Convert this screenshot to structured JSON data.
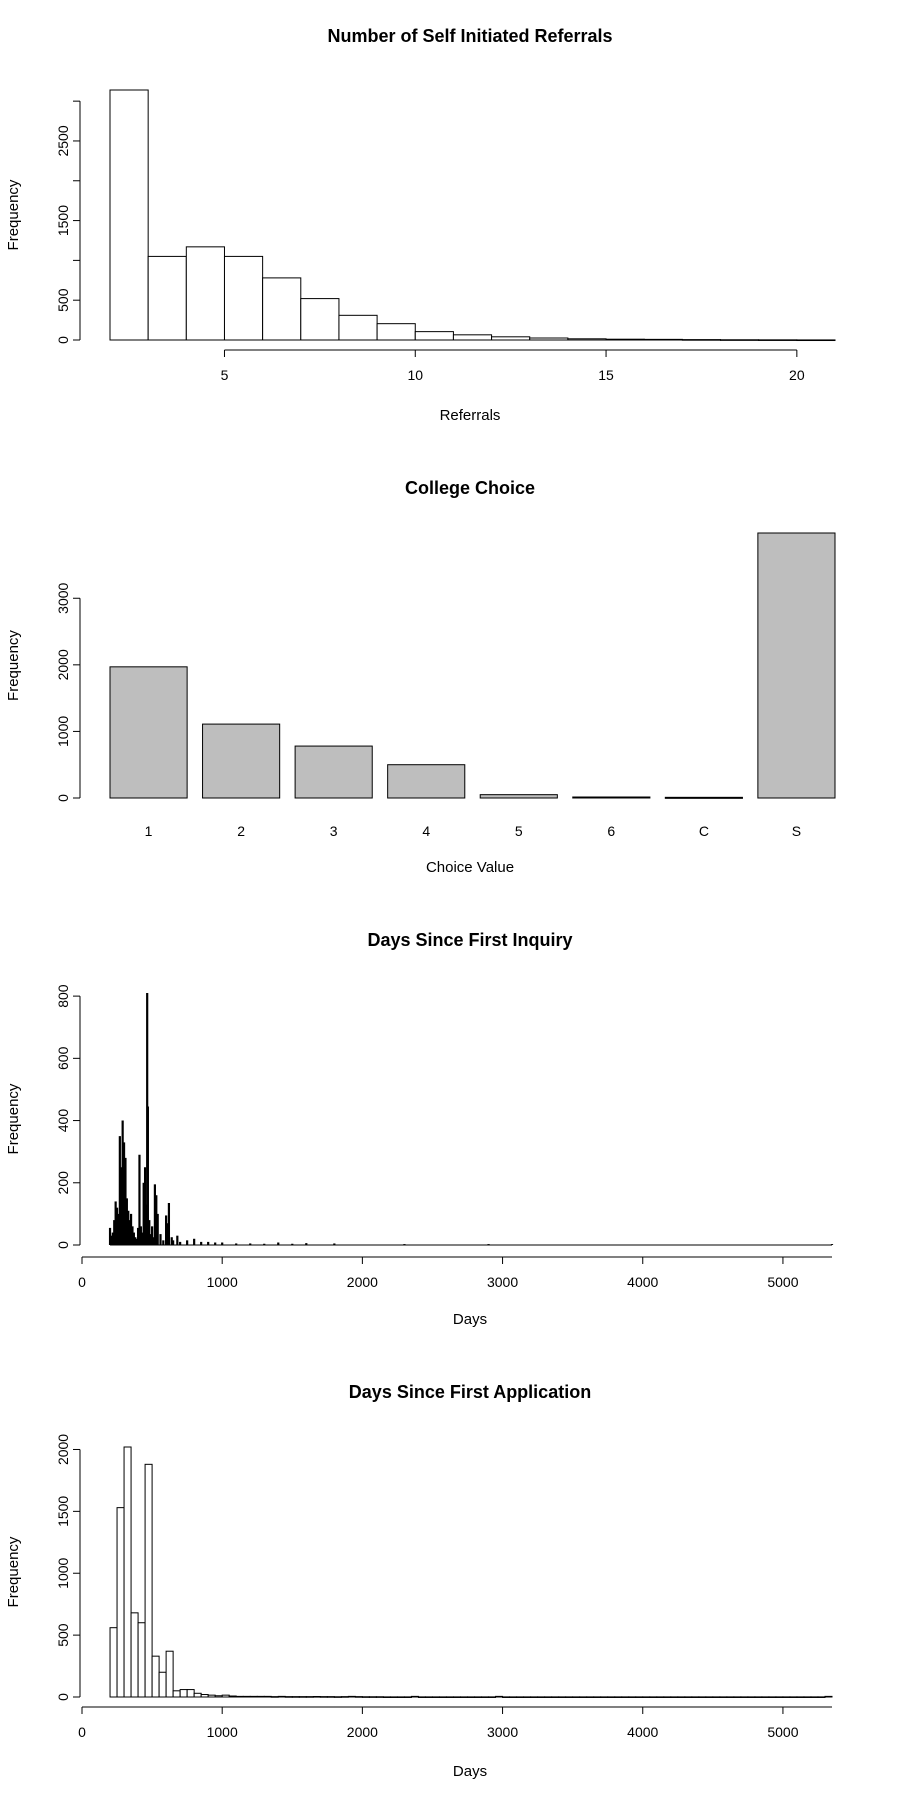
{
  "chart_data": [
    {
      "type": "bar",
      "title": "Number of Self Initiated Referrals",
      "xlabel": "Referrals",
      "ylabel": "Frequency",
      "histogram": true,
      "bin_edges": [
        2,
        3,
        4,
        5,
        6,
        7,
        8,
        9,
        10,
        11,
        12,
        13,
        14,
        15,
        16,
        17,
        18,
        19,
        20,
        21
      ],
      "values": [
        3140,
        1050,
        1170,
        1050,
        780,
        520,
        310,
        205,
        105,
        65,
        40,
        25,
        15,
        10,
        8,
        5,
        3,
        2,
        1
      ],
      "xlim": [
        2,
        21
      ],
      "ylim": [
        0,
        3140
      ],
      "xticks": [
        5,
        10,
        15,
        20
      ],
      "xtick_labels": [
        "5",
        "10",
        "15",
        "20"
      ],
      "yticks": [
        0,
        500,
        1000,
        1500,
        2000,
        2500,
        3000
      ],
      "ytick_labels": [
        "0",
        "500",
        "",
        "1500",
        "",
        "2500",
        ""
      ],
      "fill": "#ffffff"
    },
    {
      "type": "bar",
      "title": "College Choice",
      "xlabel": "Choice Value",
      "ylabel": "Frequency",
      "categories": [
        "1",
        "2",
        "3",
        "4",
        "5",
        "6",
        "C",
        "S"
      ],
      "values": [
        1970,
        1110,
        780,
        500,
        50,
        15,
        10,
        3980
      ],
      "ylim": [
        0,
        3980
      ],
      "yticks": [
        0,
        1000,
        2000,
        3000
      ],
      "ytick_labels": [
        "0",
        "1000",
        "2000",
        "3000"
      ],
      "fill": "#bebebe"
    },
    {
      "type": "bar",
      "title": "Days Since First Inquiry",
      "xlabel": "Days",
      "ylabel": "Frequency",
      "spikes": true,
      "x": [
        200,
        210,
        220,
        230,
        240,
        250,
        260,
        270,
        280,
        290,
        300,
        310,
        320,
        330,
        340,
        350,
        360,
        370,
        380,
        390,
        400,
        410,
        420,
        430,
        440,
        450,
        460,
        465,
        470,
        480,
        490,
        500,
        510,
        520,
        530,
        540,
        560,
        580,
        600,
        610,
        620,
        640,
        650,
        680,
        700,
        750,
        800,
        850,
        900,
        950,
        1000,
        1100,
        1200,
        1300,
        1400,
        1500,
        1600,
        1800,
        2300,
        2900,
        5350
      ],
      "values": [
        55,
        30,
        40,
        80,
        140,
        120,
        100,
        350,
        250,
        400,
        330,
        280,
        150,
        110,
        80,
        100,
        60,
        40,
        25,
        20,
        55,
        290,
        60,
        40,
        200,
        250,
        130,
        810,
        445,
        80,
        35,
        60,
        25,
        195,
        160,
        100,
        35,
        15,
        95,
        70,
        135,
        25,
        15,
        30,
        10,
        15,
        20,
        10,
        10,
        8,
        8,
        5,
        5,
        4,
        8,
        4,
        6,
        5,
        3,
        3,
        3
      ],
      "xlim": [
        0,
        5350
      ],
      "ylim": [
        0,
        810
      ],
      "xticks": [
        0,
        1000,
        2000,
        3000,
        4000,
        5000
      ],
      "xtick_labels": [
        "0",
        "1000",
        "2000",
        "3000",
        "4000",
        "5000"
      ],
      "yticks": [
        0,
        200,
        400,
        600,
        800
      ],
      "ytick_labels": [
        "0",
        "200",
        "400",
        "600",
        "800"
      ]
    },
    {
      "type": "bar",
      "title": "Days Since First Application",
      "xlabel": "Days",
      "ylabel": "Frequency",
      "histogram": true,
      "bin_edges": [
        200,
        250,
        300,
        350,
        400,
        450,
        500,
        550,
        600,
        650,
        700,
        750,
        800,
        850,
        900,
        950,
        1000,
        1050,
        1100,
        1150,
        1200,
        1250,
        1300,
        1350,
        1400,
        1450,
        1500,
        1550,
        1600,
        1650,
        1700,
        1750,
        1800,
        1850,
        1900,
        1950,
        2000,
        2050,
        2100,
        2150,
        2200,
        2250,
        2300,
        2350,
        2400,
        2450,
        2500,
        2550,
        2600,
        2650,
        2700,
        2750,
        2800,
        2850,
        2900,
        2950,
        3000,
        3050,
        3100,
        3150,
        3200,
        3250,
        3300,
        3350,
        3400,
        3450,
        3500,
        3550,
        3600,
        3650,
        3700,
        3750,
        3800,
        3850,
        3900,
        3950,
        4000,
        4050,
        4100,
        4150,
        4200,
        4250,
        4300,
        4350,
        4400,
        4450,
        4500,
        4550,
        4600,
        4650,
        4700,
        4750,
        4800,
        4850,
        4900,
        4950,
        5000,
        5050,
        5100,
        5150,
        5200,
        5250,
        5300,
        5350
      ],
      "values": [
        560,
        1530,
        2020,
        680,
        600,
        1880,
        330,
        200,
        370,
        50,
        60,
        60,
        30,
        20,
        15,
        10,
        15,
        8,
        5,
        5,
        5,
        5,
        5,
        3,
        5,
        3,
        3,
        3,
        3,
        4,
        3,
        3,
        2,
        3,
        5,
        3,
        2,
        2,
        2,
        1,
        1,
        1,
        1,
        5,
        1,
        1,
        1,
        1,
        1,
        1,
        1,
        1,
        1,
        1,
        1,
        5,
        1,
        1,
        1,
        1,
        1,
        1,
        1,
        1,
        1,
        1,
        1,
        1,
        1,
        1,
        1,
        1,
        1,
        1,
        1,
        1,
        1,
        1,
        1,
        1,
        1,
        1,
        1,
        1,
        1,
        1,
        1,
        1,
        1,
        1,
        1,
        1,
        1,
        1,
        1,
        1,
        1,
        1,
        1,
        1,
        1,
        1,
        5
      ],
      "xlim": [
        0,
        5350
      ],
      "ylim": [
        0,
        2020
      ],
      "xticks": [
        0,
        1000,
        2000,
        3000,
        4000,
        5000
      ],
      "xtick_labels": [
        "0",
        "1000",
        "2000",
        "3000",
        "4000",
        "5000"
      ],
      "yticks": [
        0,
        500,
        1000,
        1500,
        2000
      ],
      "ytick_labels": [
        "0",
        "500",
        "1000",
        "1500",
        "2000"
      ],
      "fill": "#ffffff"
    }
  ]
}
